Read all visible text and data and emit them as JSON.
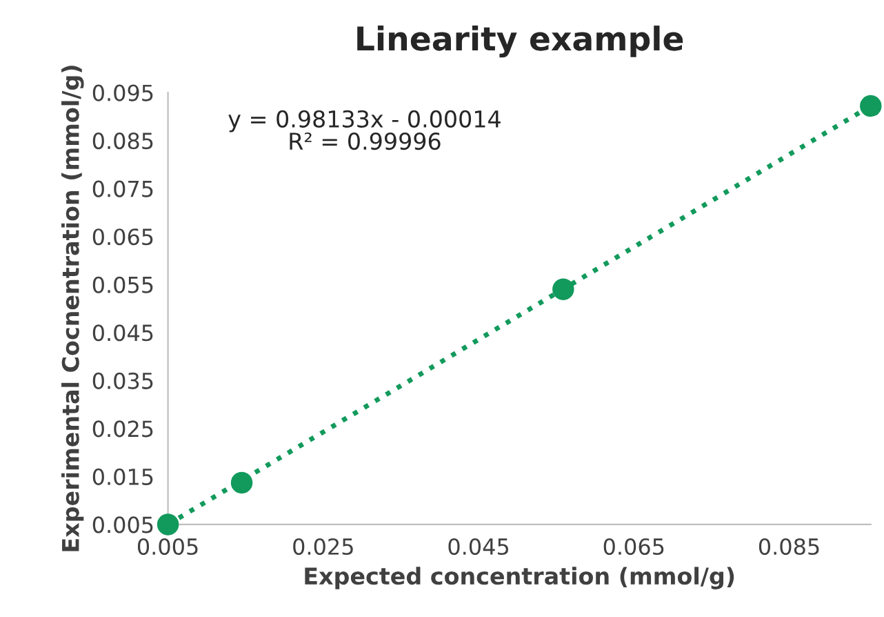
{
  "chart_data": {
    "type": "scatter",
    "title": "Linearity example",
    "xlabel": "Expected concentration (mmol/g)",
    "ylabel": "Experimental Cocnentration (mmol/g)",
    "annotations": [
      "y = 0.98133x - 0.00014\nR² = 0.99996"
    ],
    "series": [
      {
        "color": "#129a5c",
        "x": [
          0.005,
          0.0145,
          0.0559,
          0.0955
        ],
        "values": [
          0.005,
          0.0137,
          0.054,
          0.0922
        ],
        "marker": "circle"
      },
      {
        "type": "line",
        "color": "#129a5c",
        "x": [
          0.005,
          0.0955
        ],
        "values": [
          0.005,
          0.0922
        ],
        "line_style": "dotted",
        "marker": "none"
      }
    ],
    "xlim": [
      0.005,
      0.0955
    ],
    "xticks": [
      0.005,
      0.025,
      0.045,
      0.065,
      0.085
    ],
    "ylim": [
      0.005,
      0.095
    ],
    "yticks": [
      0.005,
      0.015,
      0.025,
      0.035,
      0.045,
      0.055,
      0.065,
      0.075,
      0.085,
      0.095
    ],
    "grid": false,
    "legend": false
  }
}
